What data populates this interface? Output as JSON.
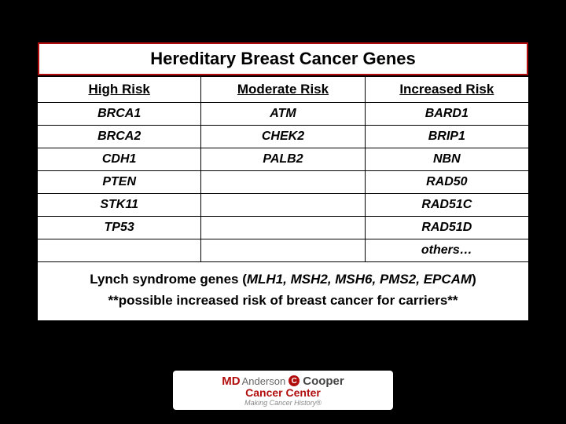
{
  "colors": {
    "background": "#000000",
    "title_bg": "#b10d0d",
    "cell_bg": "#ffffff",
    "border": "#000000",
    "text": "#000000"
  },
  "table": {
    "title": "Hereditary Breast Cancer Genes",
    "headers": [
      "High Risk",
      "Moderate Risk",
      "Increased Risk"
    ],
    "rows": [
      [
        "BRCA1",
        "ATM",
        "BARD1"
      ],
      [
        "BRCA2",
        "CHEK2",
        "BRIP1"
      ],
      [
        "CDH1",
        "PALB2",
        "NBN"
      ],
      [
        "PTEN",
        "",
        "RAD50"
      ],
      [
        "STK11",
        "",
        "RAD51C"
      ],
      [
        "TP53",
        "",
        "RAD51D"
      ],
      [
        "",
        "",
        "others…"
      ]
    ],
    "footer_line1_prefix": "Lynch syndrome genes (",
    "footer_line1_genes": "MLH1, MSH2, MSH6, PMS2, EPCAM",
    "footer_line1_suffix": ")",
    "footer_line2": "**possible increased risk of breast cancer for carriers**"
  },
  "logo": {
    "md": "MD",
    "anderson": "Anderson",
    "cooper": "Cooper",
    "sub": "Cancer Center",
    "tag": "Making Cancer History®",
    "circle": "C"
  }
}
